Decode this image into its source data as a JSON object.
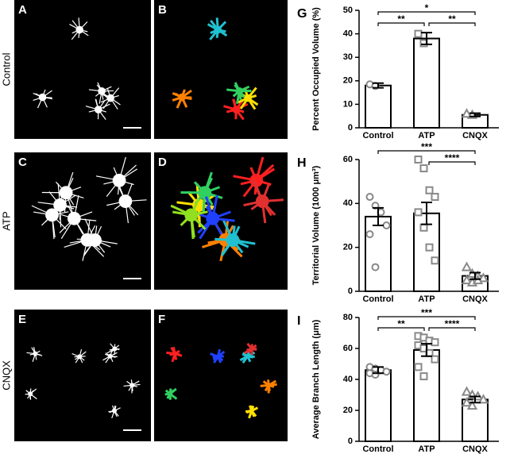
{
  "panels": {
    "row_labels": [
      "Control",
      "ATP",
      "CNQX"
    ],
    "letters": [
      [
        "A",
        "B"
      ],
      [
        "C",
        "D"
      ],
      [
        "E",
        "F"
      ]
    ]
  },
  "chart_data": [
    {
      "type": "bar",
      "panel": "G",
      "ylabel": "Percent Occupied Volume (%)",
      "categories": [
        "Control",
        "ATP",
        "CNQX"
      ],
      "values": [
        18,
        38,
        5.5
      ],
      "errors": [
        1,
        2.5,
        0.7
      ],
      "points": [
        [
          18.5,
          17.8
        ],
        [
          40,
          36
        ],
        [
          6,
          5.5
        ]
      ],
      "markers": [
        "circle",
        "square",
        "triangle"
      ],
      "color": "#ffffff",
      "point_color": "#888888",
      "ylim": [
        0,
        50
      ],
      "yticks": [
        0,
        10,
        20,
        30,
        40,
        50
      ],
      "comparisons": [
        {
          "pair": [
            "Control",
            "CNQX"
          ],
          "label": "*"
        },
        {
          "pair": [
            "Control",
            "ATP"
          ],
          "label": "**"
        },
        {
          "pair": [
            "ATP",
            "CNQX"
          ],
          "label": "**"
        }
      ]
    },
    {
      "type": "bar",
      "panel": "H",
      "ylabel": "Territorial Volume (1000 μm³)",
      "categories": [
        "Control",
        "ATP",
        "CNQX"
      ],
      "values": [
        34,
        35.5,
        7
      ],
      "errors": [
        4,
        5,
        1.5
      ],
      "points": [
        [
          43,
          39,
          36,
          30,
          26,
          11
        ],
        [
          60,
          56,
          46,
          43,
          36,
          29,
          20,
          14
        ],
        [
          11,
          8,
          7,
          6,
          5,
          4,
          5
        ]
      ],
      "markers": [
        "circle",
        "square",
        "triangle"
      ],
      "color": "#ffffff",
      "point_color": "#888888",
      "ylim": [
        0,
        60
      ],
      "yticks": [
        0,
        20,
        40,
        60
      ],
      "comparisons": [
        {
          "pair": [
            "Control",
            "CNQX"
          ],
          "label": "***"
        },
        {
          "pair": [
            "ATP",
            "CNQX"
          ],
          "label": "****"
        }
      ]
    },
    {
      "type": "bar",
      "panel": "I",
      "ylabel": "Average Branch Length (μm)",
      "categories": [
        "Control",
        "ATP",
        "CNQX"
      ],
      "values": [
        46,
        59,
        27
      ],
      "errors": [
        2,
        4,
        2
      ],
      "points": [
        [
          48,
          47,
          46,
          45,
          44,
          43
        ],
        [
          68,
          67,
          65,
          64,
          62,
          60,
          57,
          53,
          48,
          42
        ],
        [
          32,
          30,
          29,
          27,
          25,
          23
        ]
      ],
      "markers": [
        "circle",
        "square",
        "triangle"
      ],
      "color": "#ffffff",
      "point_color": "#888888",
      "ylim": [
        0,
        80
      ],
      "yticks": [
        0,
        20,
        40,
        60,
        80
      ],
      "comparisons": [
        {
          "pair": [
            "Control",
            "CNQX"
          ],
          "label": "***"
        },
        {
          "pair": [
            "Control",
            "ATP"
          ],
          "label": "**"
        },
        {
          "pair": [
            "ATP",
            "CNQX"
          ],
          "label": "****"
        }
      ]
    }
  ]
}
